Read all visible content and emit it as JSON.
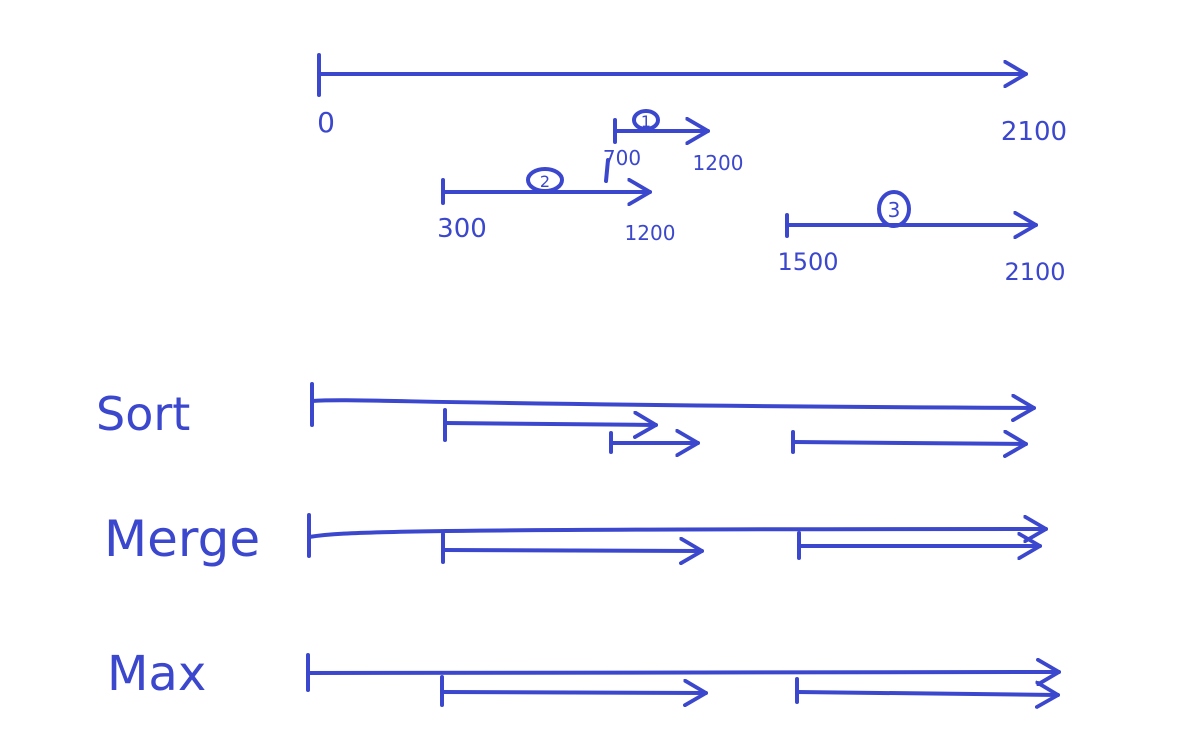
{
  "diagram": {
    "ink_color": "#3b47cc",
    "timeline": {
      "start_label": "0",
      "end_label": "2100",
      "intervals": [
        {
          "id": "1",
          "start_label": "700",
          "end_label": "1200"
        },
        {
          "id": "2",
          "start_label": "300",
          "end_label": "1200"
        },
        {
          "id": "3",
          "start_label": "1500",
          "end_label": "2100"
        }
      ]
    },
    "steps": [
      {
        "label": "Sort"
      },
      {
        "label": "Merge"
      },
      {
        "label": "Max"
      }
    ]
  }
}
